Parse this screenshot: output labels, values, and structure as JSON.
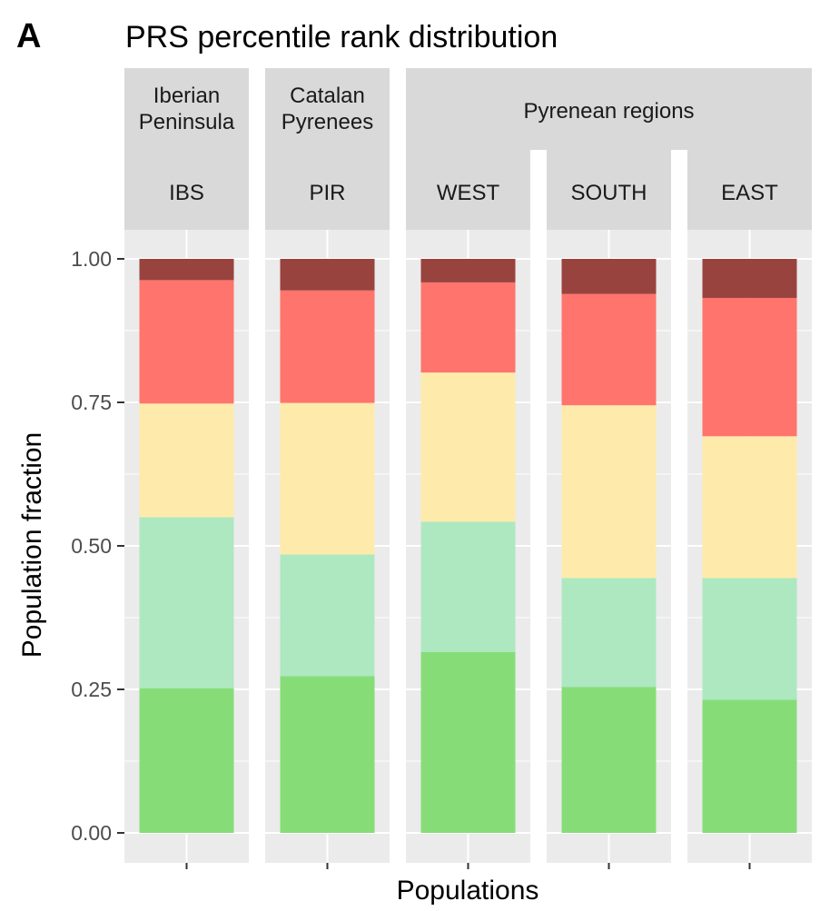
{
  "chart_data": {
    "type": "bar",
    "stacked": true,
    "panel_letter": "A",
    "title": "PRS percentile rank distribution",
    "xlabel": "Populations",
    "ylabel": "Population fraction",
    "ylim": [
      0,
      1
    ],
    "yticks": [
      "0.00",
      "0.25",
      "0.50",
      "0.75",
      "1.00"
    ],
    "grid": true,
    "legend": "none",
    "facet_groups": [
      {
        "label": "Iberian\nPeninsula",
        "panels": [
          "IBS"
        ]
      },
      {
        "label": "Catalan\nPyrenees",
        "panels": [
          "PIR"
        ]
      },
      {
        "label": "Pyrenean regions",
        "panels": [
          "WEST",
          "SOUTH",
          "EAST"
        ]
      }
    ],
    "categories": [
      "IBS",
      "PIR",
      "WEST",
      "SOUTH",
      "EAST"
    ],
    "series": [
      {
        "color": "#86dd78",
        "values": [
          0.252,
          0.273,
          0.315,
          0.254,
          0.232
        ]
      },
      {
        "color": "#ade8c1",
        "values": [
          0.298,
          0.212,
          0.227,
          0.19,
          0.212
        ]
      },
      {
        "color": "#feebab",
        "values": [
          0.198,
          0.264,
          0.26,
          0.301,
          0.247
        ]
      },
      {
        "color": "#ff746c",
        "values": [
          0.215,
          0.196,
          0.157,
          0.194,
          0.241
        ]
      },
      {
        "color": "#99433f",
        "values": [
          0.037,
          0.055,
          0.041,
          0.061,
          0.068
        ]
      }
    ]
  }
}
